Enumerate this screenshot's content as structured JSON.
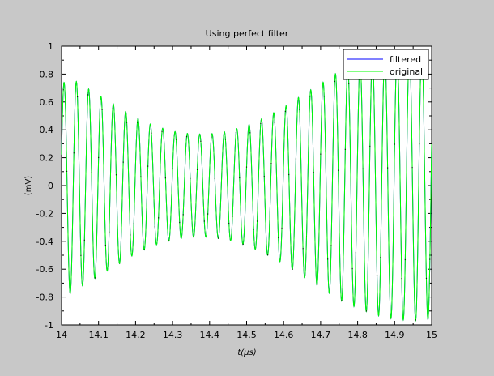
{
  "chart_data": {
    "type": "line",
    "title": "Using perfect filter",
    "xlabel": "t(μs)",
    "ylabel": "(mV)",
    "xlim": [
      14,
      15
    ],
    "ylim": [
      -1,
      1
    ],
    "x_ticks": [
      14,
      14.1,
      14.2,
      14.3,
      14.4,
      14.5,
      14.6,
      14.7,
      14.8,
      14.9,
      15
    ],
    "x_tick_labels": [
      "14",
      "14.1",
      "14.2",
      "14.3",
      "14.4",
      "14.5",
      "14.6",
      "14.7",
      "14.8",
      "14.9",
      "15"
    ],
    "y_ticks": [
      -1,
      -0.8,
      -0.6,
      -0.4,
      -0.2,
      0,
      0.2,
      0.4,
      0.6,
      0.8,
      1
    ],
    "y_tick_labels": [
      "-1",
      "-0.8",
      "-0.6",
      "-0.4",
      "-0.2",
      "0",
      "0.2",
      "0.4",
      "0.6",
      "0.8",
      "1"
    ],
    "grid": false,
    "legend_position": "top-right",
    "signal": {
      "frequency_cycles_per_us": 30,
      "phase_cycles": 0.05,
      "envelope": {
        "x": [
          14.0,
          14.02,
          14.05,
          14.1,
          14.15,
          14.2,
          14.25,
          14.3,
          14.35,
          14.4,
          14.45,
          14.5,
          14.55,
          14.6,
          14.65,
          14.7,
          14.75,
          14.8,
          14.85,
          14.9,
          14.95,
          15.0
        ],
        "amplitude": [
          0.72,
          0.78,
          0.73,
          0.65,
          0.57,
          0.49,
          0.43,
          0.39,
          0.37,
          0.37,
          0.39,
          0.43,
          0.49,
          0.56,
          0.65,
          0.73,
          0.82,
          0.88,
          0.93,
          0.96,
          0.97,
          0.96
        ]
      }
    },
    "series": [
      {
        "name": "filtered",
        "color": "#0000ff"
      },
      {
        "name": "original",
        "color": "#00ff00"
      }
    ]
  }
}
